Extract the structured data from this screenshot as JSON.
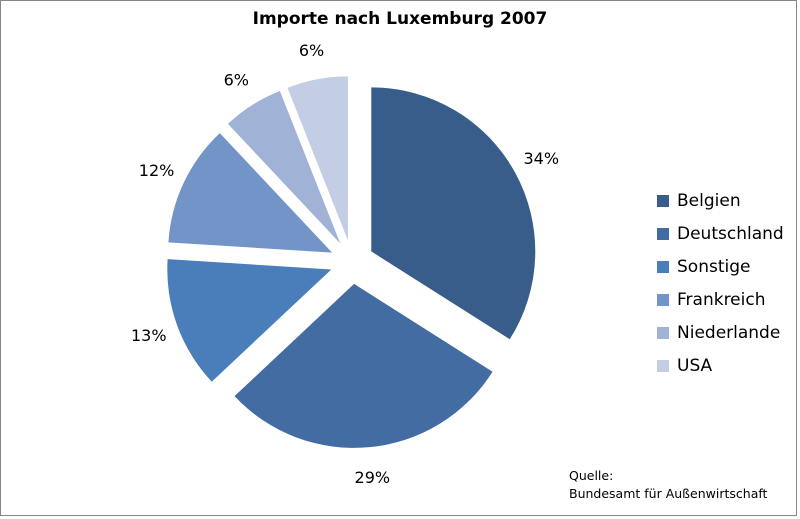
{
  "chart_data": {
    "type": "pie",
    "title": "Importe nach Luxemburg 2007",
    "categories": [
      "Belgien",
      "Deutschland",
      "Sonstige",
      "Frankreich",
      "Niederlande",
      "USA"
    ],
    "values": [
      34,
      29,
      13,
      12,
      6,
      6
    ],
    "data_labels": [
      "34%",
      "29%",
      "13%",
      "12%",
      "6%",
      "6%"
    ],
    "colors": [
      "#385d8a",
      "#426ca2",
      "#4a7ebb",
      "#7394c7",
      "#a0b2d5",
      "#c3cde3"
    ],
    "exploded": true,
    "legend_position": "right",
    "source_label": "Quelle:",
    "source": "Bundesamt für Außenwirtschaft"
  }
}
